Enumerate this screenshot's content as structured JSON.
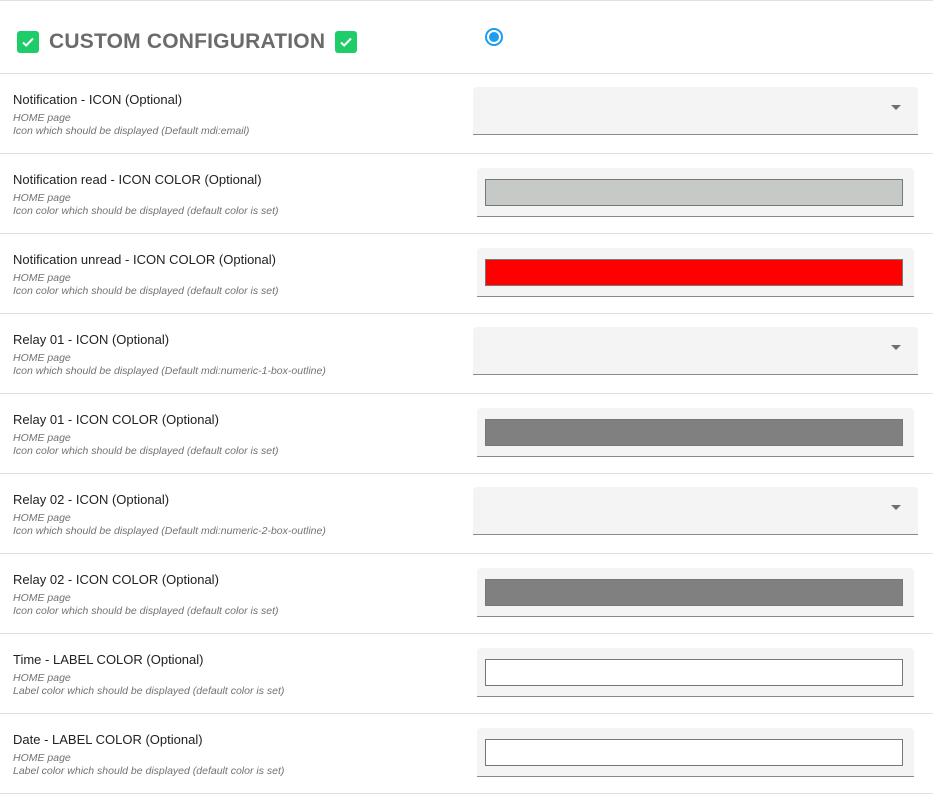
{
  "header": {
    "title": "CUSTOM CONFIGURATION",
    "check_icon_color": "#1fcc6a",
    "radio_selected": true
  },
  "rows": [
    {
      "label": "Notification - ICON (Optional)",
      "page": "HOME page",
      "description": "Icon which should be displayed (Default mdi:email)",
      "type": "dropdown",
      "value": ""
    },
    {
      "label": "Notification read - ICON COLOR (Optional)",
      "page": "HOME page",
      "description": "Icon color which should be displayed (default color is set)",
      "type": "color",
      "value": "#c5cac6"
    },
    {
      "label": "Notification unread - ICON COLOR (Optional)",
      "page": "HOME page",
      "description": "Icon color which should be displayed (default color is set)",
      "type": "color",
      "value": "#ff0000"
    },
    {
      "label": "Relay 01 - ICON (Optional)",
      "page": "HOME page",
      "description": "Icon which should be displayed (Default mdi:numeric-1-box-outline)",
      "type": "dropdown",
      "value": ""
    },
    {
      "label": "Relay 01 - ICON COLOR (Optional)",
      "page": "HOME page",
      "description": "Icon color which should be displayed (default color is set)",
      "type": "color",
      "value": "#808080"
    },
    {
      "label": "Relay 02 - ICON (Optional)",
      "page": "HOME page",
      "description": "Icon which should be displayed (Default mdi:numeric-2-box-outline)",
      "type": "dropdown",
      "value": ""
    },
    {
      "label": "Relay 02 - ICON COLOR (Optional)",
      "page": "HOME page",
      "description": "Icon color which should be displayed (default color is set)",
      "type": "color",
      "value": "#808080"
    },
    {
      "label": "Time - LABEL COLOR (Optional)",
      "page": "HOME page",
      "description": "Label color which should be displayed (default color is set)",
      "type": "color",
      "value": "#ffffff"
    },
    {
      "label": "Date - LABEL COLOR (Optional)",
      "page": "HOME page",
      "description": "Label color which should be displayed (default color is set)",
      "type": "color",
      "value": "#ffffff"
    }
  ]
}
